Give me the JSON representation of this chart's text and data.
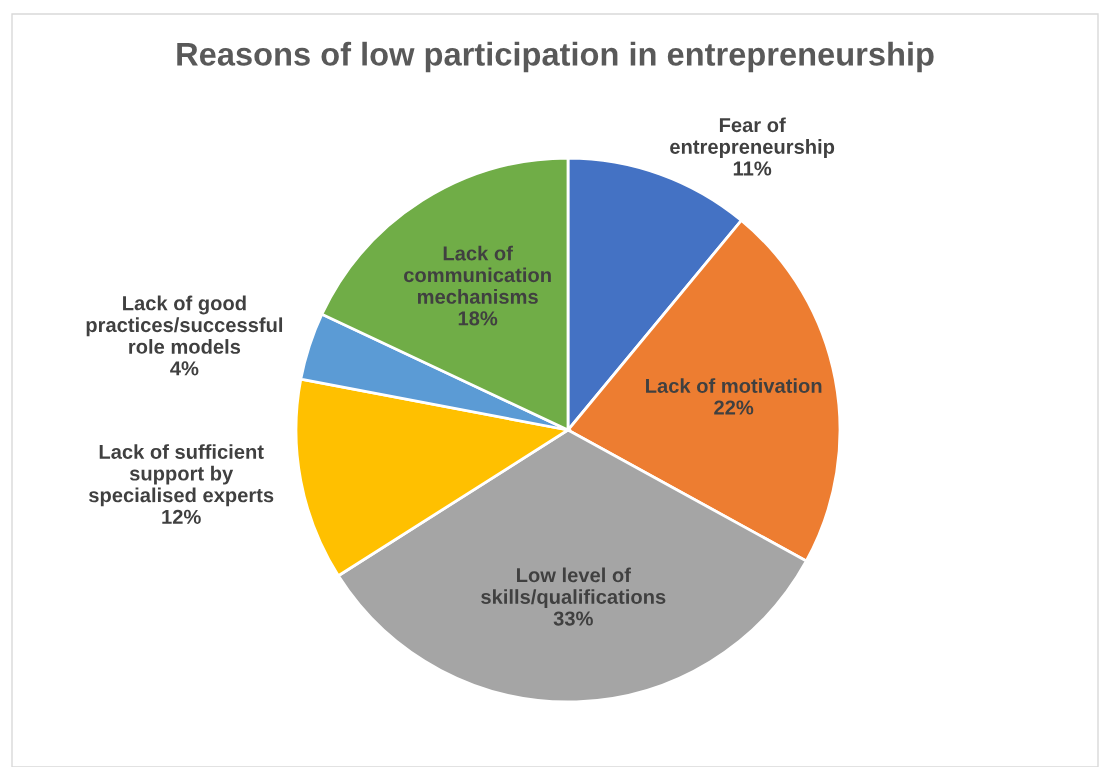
{
  "chart_data": {
    "type": "pie",
    "title": "Reasons of low participation in entrepreneurship",
    "categories": [
      "Fear of entrepreneurship",
      "Lack of motivation",
      "Low level of skills/qualifications",
      "Lack of sufficient support by specialised experts",
      "Lack of good practices/successful role models",
      "Lack of communication mechanisms"
    ],
    "values": [
      11,
      22,
      33,
      12,
      4,
      18
    ],
    "value_labels": [
      "11%",
      "22%",
      "33%",
      "12%",
      "4%",
      "18%"
    ],
    "colors": [
      "#4472c4",
      "#ed7d31",
      "#a5a5a5",
      "#ffc000",
      "#5b9bd5",
      "#70ad47"
    ],
    "legend": false
  }
}
